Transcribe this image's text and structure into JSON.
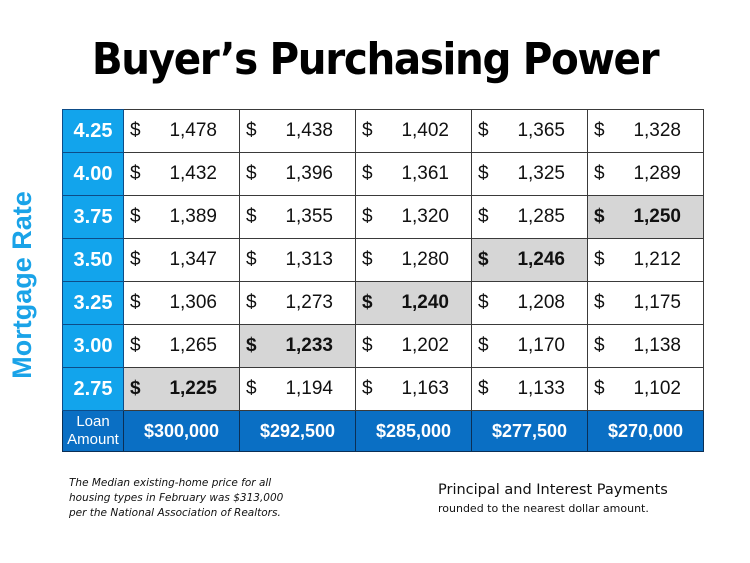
{
  "title": "Buyer’s Purchasing Power",
  "side_label": "Mortgage Rate",
  "rows": [
    {
      "rate": "4.25",
      "cells": [
        {
          "cur": "$",
          "val": "1,478"
        },
        {
          "cur": "$",
          "val": "1,438"
        },
        {
          "cur": "$",
          "val": "1,402"
        },
        {
          "cur": "$",
          "val": "1,365"
        },
        {
          "cur": "$",
          "val": "1,328"
        }
      ]
    },
    {
      "rate": "4.00",
      "cells": [
        {
          "cur": "$",
          "val": "1,432"
        },
        {
          "cur": "$",
          "val": "1,396"
        },
        {
          "cur": "$",
          "val": "1,361"
        },
        {
          "cur": "$",
          "val": "1,325"
        },
        {
          "cur": "$",
          "val": "1,289"
        }
      ]
    },
    {
      "rate": "3.75",
      "cells": [
        {
          "cur": "$",
          "val": "1,389"
        },
        {
          "cur": "$",
          "val": "1,355"
        },
        {
          "cur": "$",
          "val": "1,320"
        },
        {
          "cur": "$",
          "val": "1,285"
        },
        {
          "cur": "$",
          "val": "1,250"
        }
      ]
    },
    {
      "rate": "3.50",
      "cells": [
        {
          "cur": "$",
          "val": "1,347"
        },
        {
          "cur": "$",
          "val": "1,313"
        },
        {
          "cur": "$",
          "val": "1,280"
        },
        {
          "cur": "$",
          "val": "1,246"
        },
        {
          "cur": "$",
          "val": "1,212"
        }
      ]
    },
    {
      "rate": "3.25",
      "cells": [
        {
          "cur": "$",
          "val": "1,306"
        },
        {
          "cur": "$",
          "val": "1,273"
        },
        {
          "cur": "$",
          "val": "1,240"
        },
        {
          "cur": "$",
          "val": "1,208"
        },
        {
          "cur": "$",
          "val": "1,175"
        }
      ]
    },
    {
      "rate": "3.00",
      "cells": [
        {
          "cur": "$",
          "val": "1,265"
        },
        {
          "cur": "$",
          "val": "1,233"
        },
        {
          "cur": "$",
          "val": "1,202"
        },
        {
          "cur": "$",
          "val": "1,170"
        },
        {
          "cur": "$",
          "val": "1,138"
        }
      ]
    },
    {
      "rate": "2.75",
      "cells": [
        {
          "cur": "$",
          "val": "1,225"
        },
        {
          "cur": "$",
          "val": "1,194"
        },
        {
          "cur": "$",
          "val": "1,163"
        },
        {
          "cur": "$",
          "val": "1,133"
        },
        {
          "cur": "$",
          "val": "1,102"
        }
      ]
    }
  ],
  "loan_row": {
    "label_line1": "Loan",
    "label_line2": "Amount",
    "amounts": [
      "$300,000",
      "$292,500",
      "$285,000",
      "$277,500",
      "$270,000"
    ]
  },
  "footnote_left": {
    "line1": "The Median existing-home price for all",
    "line2": "housing types in February was $313,000",
    "line3": "per the National Association of Realtors."
  },
  "footnote_right": {
    "line1": "Principal and Interest Payments",
    "line2": "rounded to the nearest dollar amount."
  },
  "colors": {
    "rate_cell": "#12a4ec",
    "loan_row": "#0a6fc4",
    "highlight": "#d6d6d6",
    "side_label": "#1aa3e8"
  },
  "chart_data": {
    "type": "table",
    "title": "Buyer’s Purchasing Power",
    "row_header_label": "Mortgage Rate",
    "column_header_label": "Loan Amount",
    "columns": [
      "$300,000",
      "$292,500",
      "$285,000",
      "$277,500",
      "$270,000"
    ],
    "rows": [
      "4.25",
      "4.00",
      "3.75",
      "3.50",
      "3.25",
      "3.00",
      "2.75"
    ],
    "values": [
      [
        1478,
        1438,
        1402,
        1365,
        1328
      ],
      [
        1432,
        1396,
        1361,
        1325,
        1289
      ],
      [
        1389,
        1355,
        1320,
        1285,
        1250
      ],
      [
        1347,
        1313,
        1280,
        1246,
        1212
      ],
      [
        1306,
        1273,
        1240,
        1208,
        1175
      ],
      [
        1265,
        1233,
        1202,
        1170,
        1138
      ],
      [
        1225,
        1194,
        1163,
        1133,
        1102
      ]
    ],
    "highlighted_cells": [
      {
        "rate": "2.75",
        "loan": "$300,000",
        "value": 1225
      },
      {
        "rate": "3.00",
        "loan": "$292,500",
        "value": 1233
      },
      {
        "rate": "3.25",
        "loan": "$285,000",
        "value": 1240
      },
      {
        "rate": "3.50",
        "loan": "$277,500",
        "value": 1246
      },
      {
        "rate": "3.75",
        "loan": "$270,000",
        "value": 1250
      }
    ],
    "notes": [
      "Principal and Interest Payments rounded to the nearest dollar amount.",
      "The Median existing-home price for all housing types in February was $313,000 per the National Association of Realtors."
    ]
  }
}
